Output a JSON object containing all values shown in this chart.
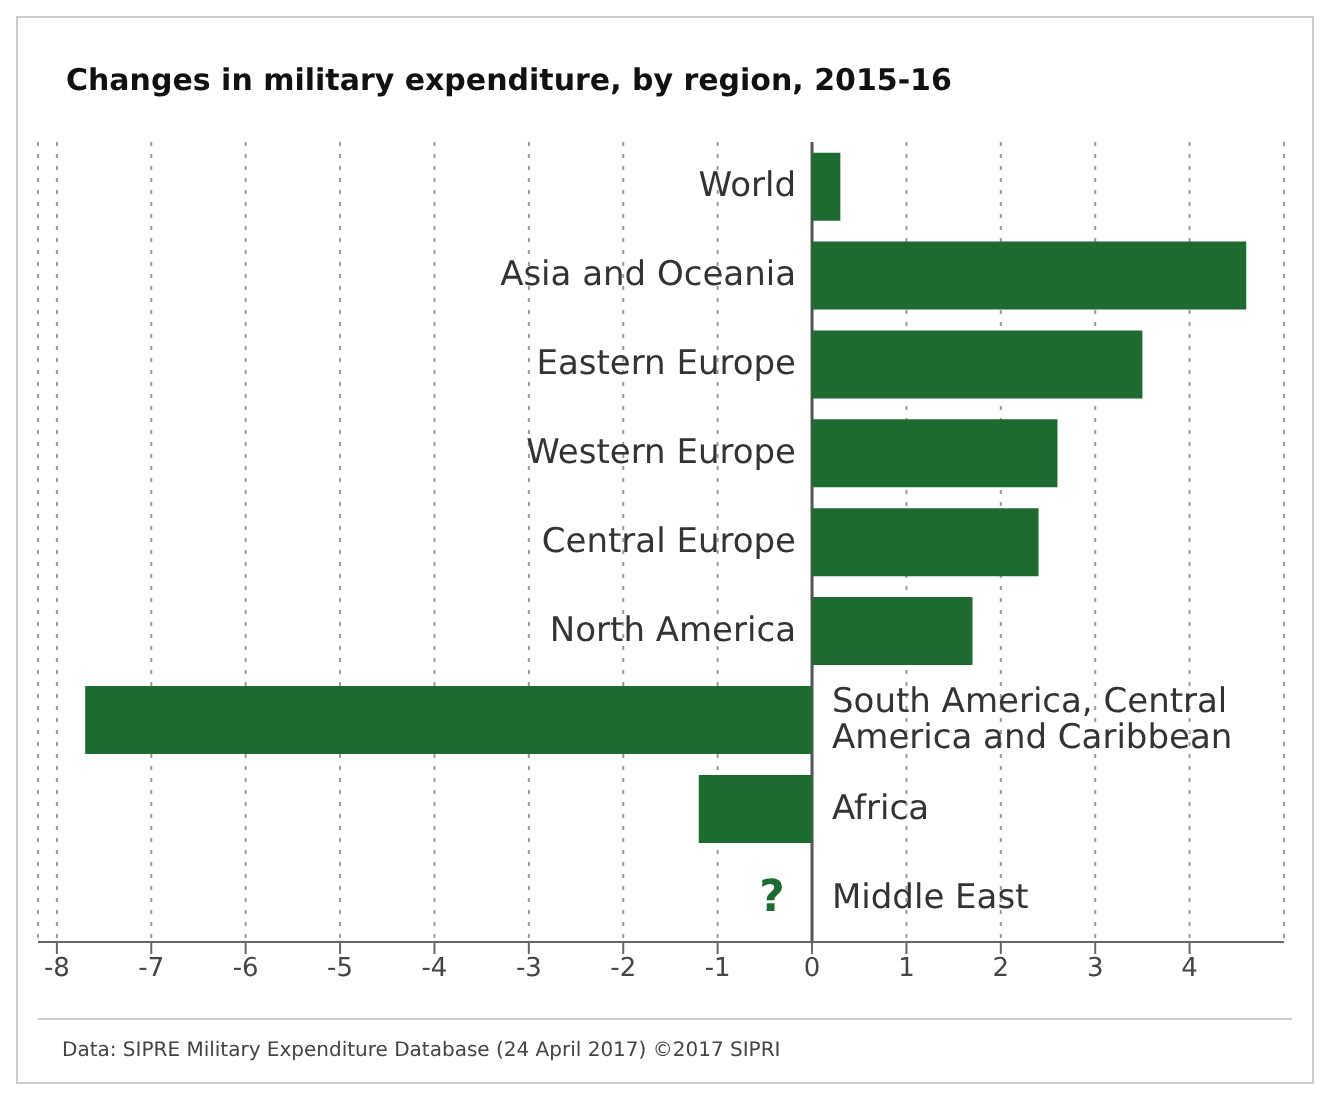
{
  "chart_data": {
    "type": "bar",
    "orientation": "horizontal",
    "title": "Changes in military expenditure, by region, 2015-16",
    "categories": [
      "World",
      "Asia and Oceania",
      "Eastern Europe",
      "Western Europe",
      "Central Europe",
      "North America",
      "South America, Central America and Caribbean",
      "Africa",
      "Middle East"
    ],
    "values": [
      0.3,
      4.6,
      3.5,
      2.6,
      2.4,
      1.7,
      -7.7,
      -1.2,
      null
    ],
    "color": "#1d6b30",
    "xlim": [
      -8.2,
      5
    ],
    "xticks": [
      -8,
      -7,
      -6,
      -5,
      -4,
      -3,
      -2,
      -1,
      0,
      1,
      2,
      3,
      4
    ],
    "grid": "x",
    "legend": false,
    "annotations": [
      "?",
      "Data: SIPRE Military Expenditure Database (24 April 2017) ©2017 SIPRI"
    ]
  }
}
